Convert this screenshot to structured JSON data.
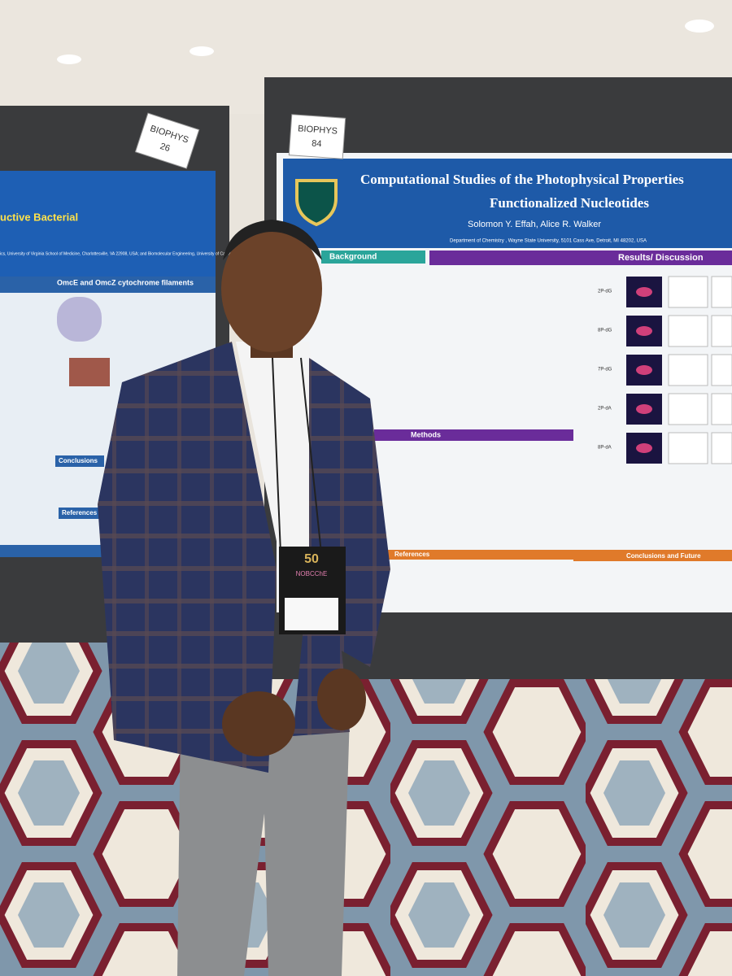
{
  "left_poster": {
    "tag_label": "BIOPHYS",
    "tag_number": "26",
    "title": "uctive Bacterial",
    "affiliation": "ics, University of Virginia School of Medicine, Charlottesville, VA 22908, USA; and Biomolecular Engineering, University of California, Irvine, United States",
    "section_filaments": "OmcE and OmcZ cytochrome filaments",
    "section_conclusions": "Conclusions",
    "section_references": "References"
  },
  "right_poster": {
    "tag_label": "BIOPHYS",
    "tag_number": "84",
    "title_line1": "Computational Studies of the Photophysical Properties",
    "title_line2": "Functionalized Nucleotides",
    "authors": "Solomon Y. Effah, Alice R. Walker",
    "affiliation": "Department of Chemistry , Wayne State University, 5101 Cass Ave, Detroit, MI 48202, USA",
    "section_background": "Background",
    "section_results": "Results/ Discussion",
    "section_methods": "Methods",
    "section_references": "References",
    "section_conclusions": "Conclusions and Future",
    "row_labels": [
      "2P-dG",
      "8P-dG",
      "7P-dG",
      "2P-dA",
      "8P-dA"
    ]
  },
  "badge": {
    "logo": "50",
    "org": "NOBCChE"
  }
}
